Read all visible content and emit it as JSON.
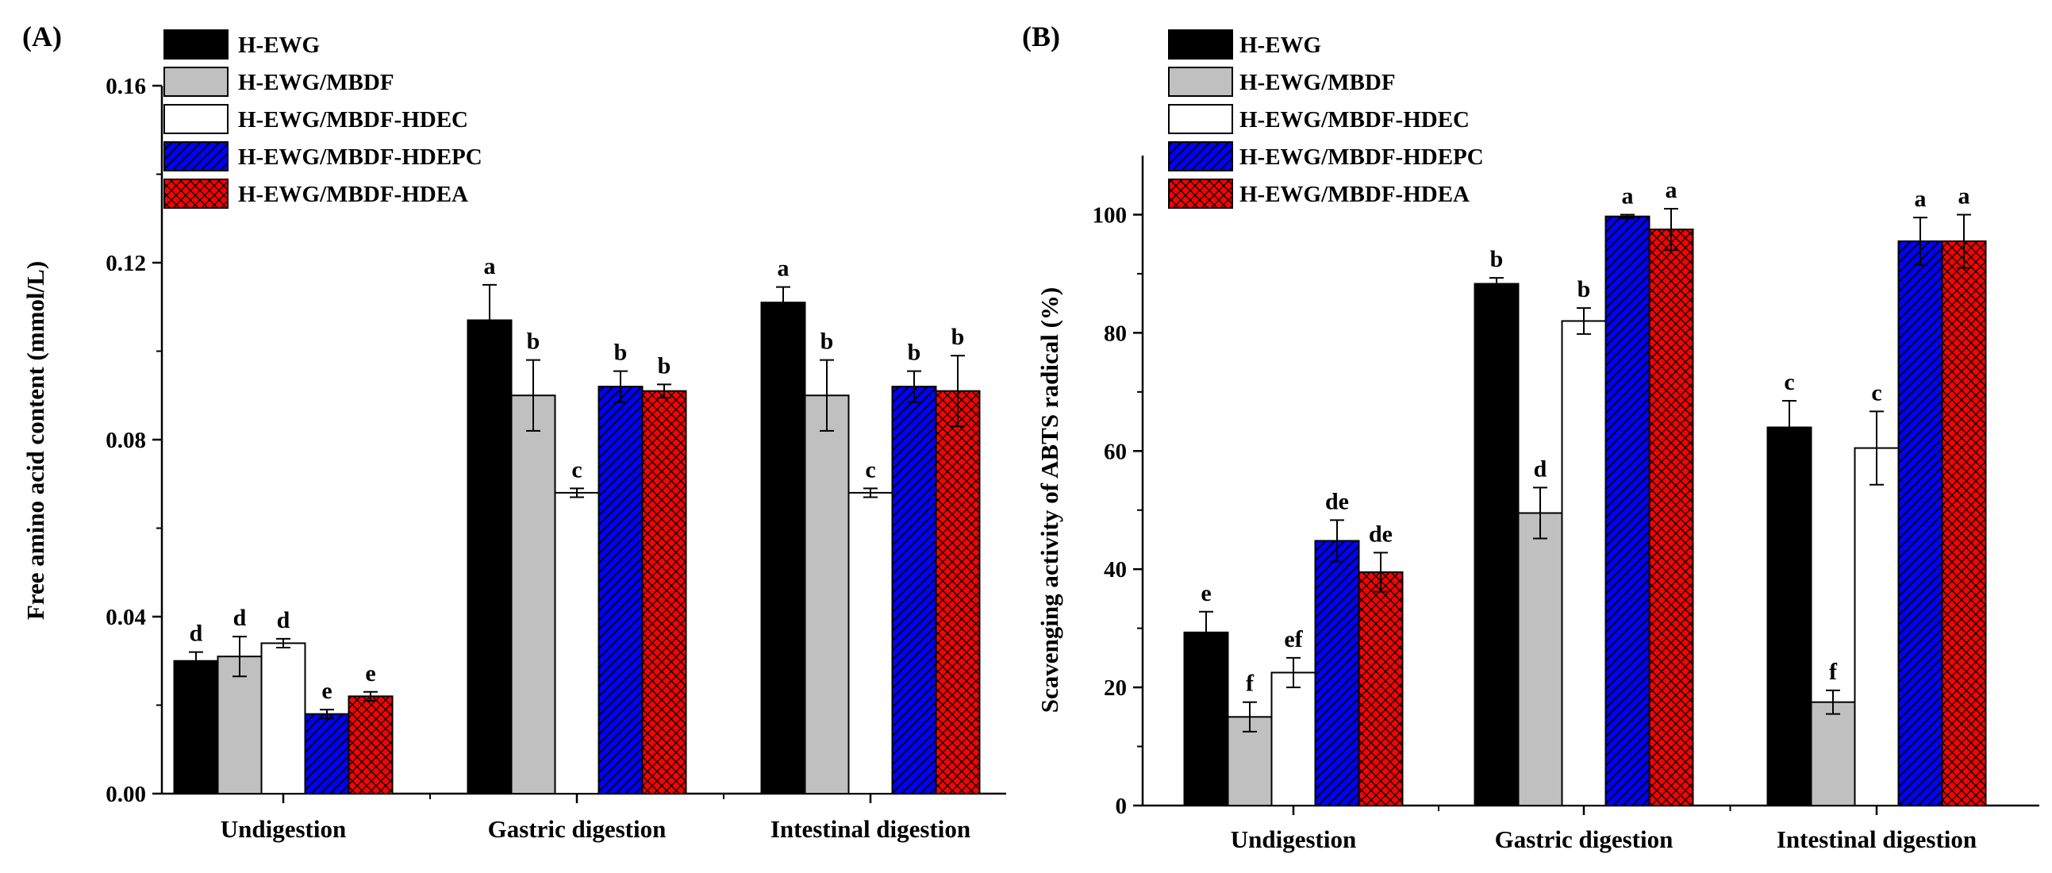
{
  "series_styles": [
    {
      "fill": "#000000",
      "pattern": "none"
    },
    {
      "fill": "#c0c0c0",
      "pattern": "none"
    },
    {
      "fill": "#ffffff",
      "pattern": "none"
    },
    {
      "fill": "#0000ff",
      "pattern": "diag"
    },
    {
      "fill": "#ff0000",
      "pattern": "cross"
    }
  ],
  "chart_data": [
    {
      "type": "bar",
      "panel_label": "(A)",
      "title": "",
      "xlabel": "",
      "ylabel": "Free amino acid content (mmol/L)",
      "categories": [
        "Undigestion",
        "Gastric digestion",
        "Intestinal digestion"
      ],
      "ylim": [
        0,
        0.16
      ],
      "yticks": [
        "0.00",
        "0.04",
        "0.08",
        "0.12",
        "0.16"
      ],
      "ytick_values": [
        0,
        0.04,
        0.08,
        0.12,
        0.16
      ],
      "grid": false,
      "legend": "top-left",
      "series": [
        {
          "name": "H-EWG",
          "values": [
            0.03,
            0.107,
            0.111
          ],
          "errors": [
            0.002,
            0.008,
            0.0035
          ],
          "letters": [
            "d",
            "a",
            "a"
          ]
        },
        {
          "name": "H-EWG/MBDF",
          "values": [
            0.031,
            0.09,
            0.09
          ],
          "errors": [
            0.0045,
            0.008,
            0.008
          ],
          "letters": [
            "d",
            "b",
            "b"
          ]
        },
        {
          "name": "H-EWG/MBDF-HDEC",
          "values": [
            0.034,
            0.068,
            0.068
          ],
          "errors": [
            0.001,
            0.001,
            0.001
          ],
          "letters": [
            "d",
            "c",
            "c"
          ]
        },
        {
          "name": "H-EWG/MBDF-HDEPC",
          "values": [
            0.018,
            0.092,
            0.092
          ],
          "errors": [
            0.001,
            0.0035,
            0.0035
          ],
          "letters": [
            "e",
            "b",
            "b"
          ]
        },
        {
          "name": "H-EWG/MBDF-HDEA",
          "values": [
            0.022,
            0.091,
            0.091
          ],
          "errors": [
            0.001,
            0.0015,
            0.008
          ],
          "letters": [
            "e",
            "b",
            "b"
          ]
        }
      ]
    },
    {
      "type": "bar",
      "panel_label": "(B)",
      "title": "",
      "xlabel": "",
      "ylabel": "Scavenging activity of ABTS radical (%)",
      "categories": [
        "Undigestion",
        "Gastric digestion",
        "Intestinal digestion"
      ],
      "ylim": [
        0,
        110
      ],
      "yticks": [
        "0",
        "20",
        "40",
        "60",
        "80",
        "100"
      ],
      "ytick_values": [
        0,
        20,
        40,
        60,
        80,
        100
      ],
      "grid": false,
      "legend": "top-left",
      "series": [
        {
          "name": "H-EWG",
          "values": [
            29.3,
            88.3,
            64.0
          ],
          "errors": [
            3.5,
            1.0,
            4.5
          ],
          "letters": [
            "e",
            "b",
            "c"
          ]
        },
        {
          "name": "H-EWG/MBDF",
          "values": [
            15.0,
            49.5,
            17.5
          ],
          "errors": [
            2.5,
            4.3,
            2.0
          ],
          "letters": [
            "f",
            "d",
            "f"
          ]
        },
        {
          "name": "H-EWG/MBDF-HDEC",
          "values": [
            22.5,
            82.0,
            60.5
          ],
          "errors": [
            2.5,
            2.2,
            6.2
          ],
          "letters": [
            "ef",
            "b",
            "c"
          ]
        },
        {
          "name": "H-EWG/MBDF-HDEPC",
          "values": [
            44.8,
            99.7,
            95.5
          ],
          "errors": [
            3.5,
            0.3,
            4.0
          ],
          "letters": [
            "de",
            "a",
            "a"
          ]
        },
        {
          "name": "H-EWG/MBDF-HDEA",
          "values": [
            39.5,
            97.5,
            95.5
          ],
          "errors": [
            3.3,
            3.5,
            4.5
          ],
          "letters": [
            "de",
            "a",
            "a"
          ]
        }
      ]
    }
  ]
}
